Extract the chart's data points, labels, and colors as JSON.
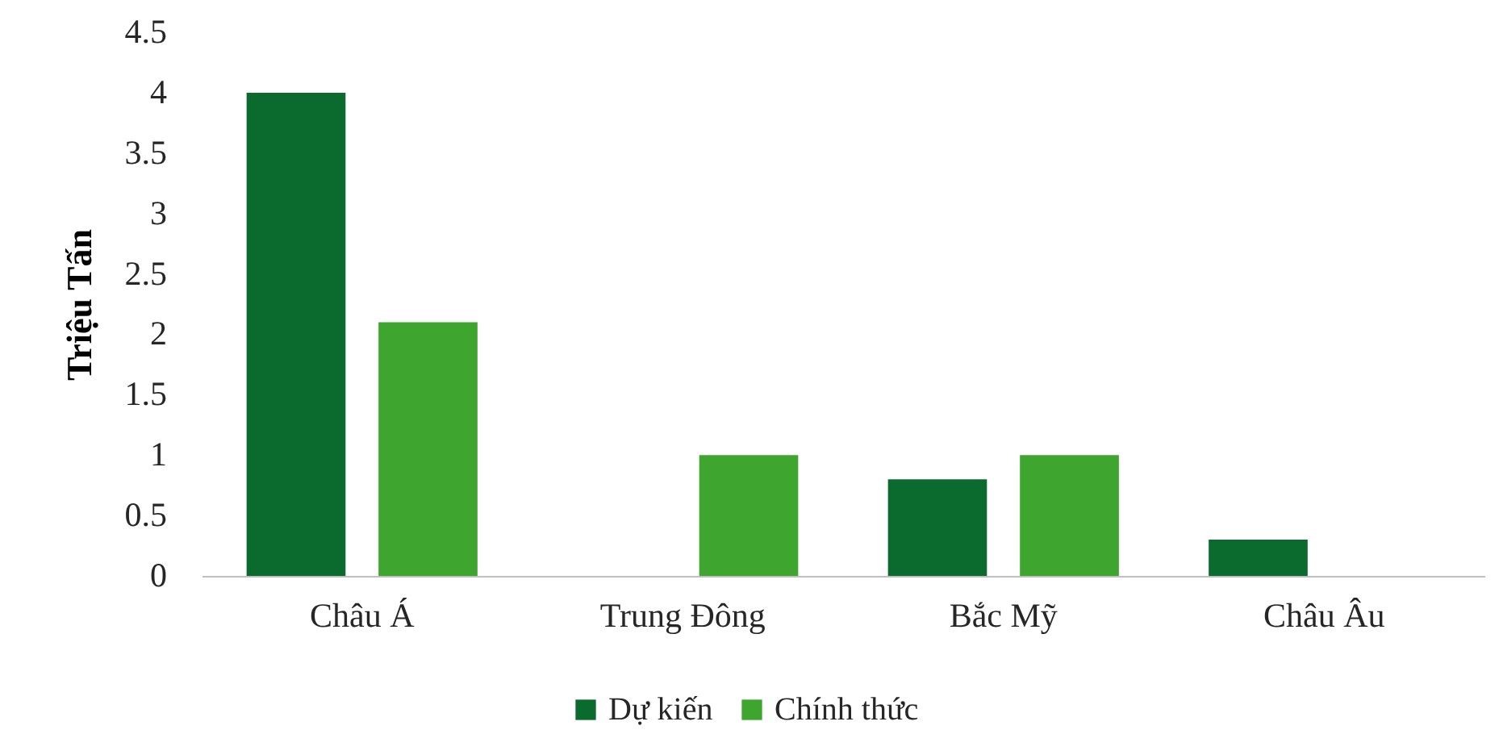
{
  "chart_data": {
    "type": "bar",
    "ylabel": "Triệu Tấn",
    "categories": [
      "Châu Á",
      "Trung Đông",
      "Bắc Mỹ",
      "Châu Âu"
    ],
    "series": [
      {
        "name": "Dự kiến",
        "color": "#0b6b2f",
        "values": [
          4,
          null,
          0.8,
          0.3
        ]
      },
      {
        "name": "Chính thức",
        "color": "#3ea52f",
        "values": [
          2.1,
          1,
          1,
          null
        ]
      }
    ],
    "ylim": [
      0,
      4.5
    ],
    "yticks": [
      0,
      0.5,
      1,
      1.5,
      2,
      2.5,
      3,
      3.5,
      4,
      4.5
    ],
    "grid": false,
    "legend": "bottom"
  }
}
